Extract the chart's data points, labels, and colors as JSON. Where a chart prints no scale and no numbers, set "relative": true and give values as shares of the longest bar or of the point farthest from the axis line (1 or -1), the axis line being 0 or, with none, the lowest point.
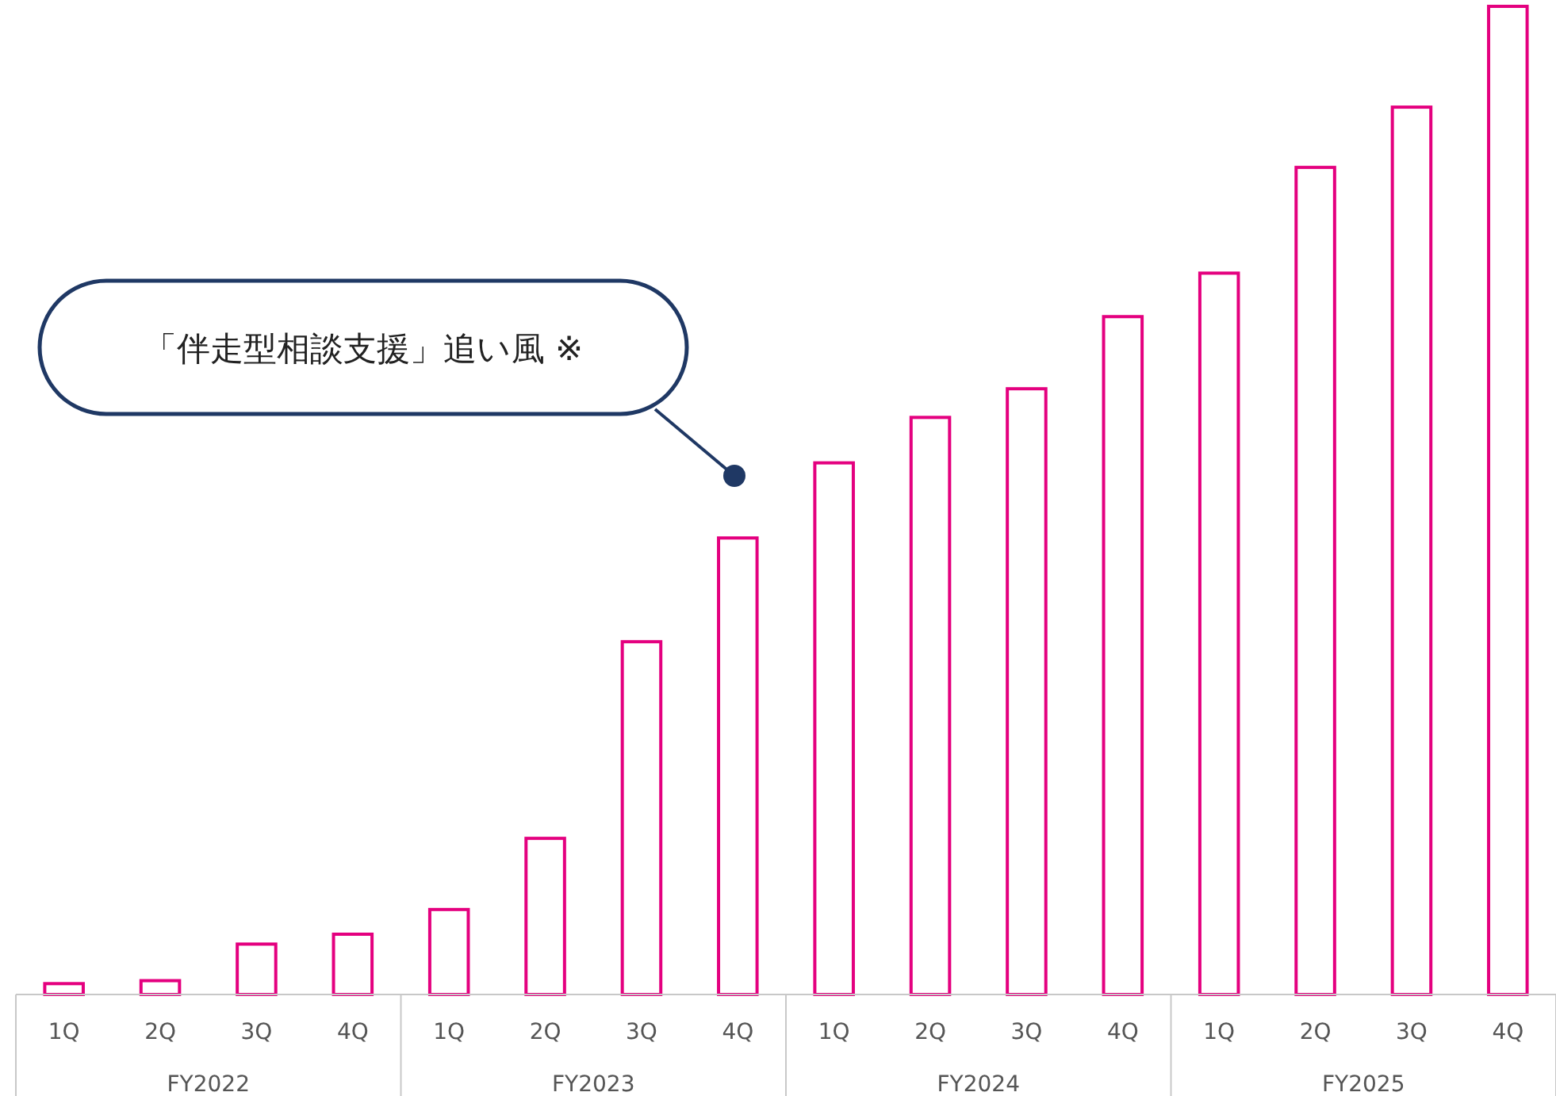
{
  "chart_data": {
    "type": "bar",
    "relative": true,
    "color": "#e4007f",
    "categories": [
      "1Q",
      "2Q",
      "3Q",
      "4Q",
      "1Q",
      "2Q",
      "3Q",
      "4Q",
      "1Q",
      "2Q",
      "3Q",
      "4Q",
      "1Q",
      "2Q",
      "3Q",
      "4Q"
    ],
    "values": [
      0.011,
      0.014,
      0.051,
      0.061,
      0.086,
      0.158,
      0.357,
      0.462,
      0.538,
      0.584,
      0.613,
      0.686,
      0.73,
      0.837,
      0.898,
      1
    ],
    "annotations": [
      "「伴走型相談支援」追い風 ※",
      "FY2022",
      "FY2023",
      "FY2024",
      "FY2025"
    ]
  }
}
